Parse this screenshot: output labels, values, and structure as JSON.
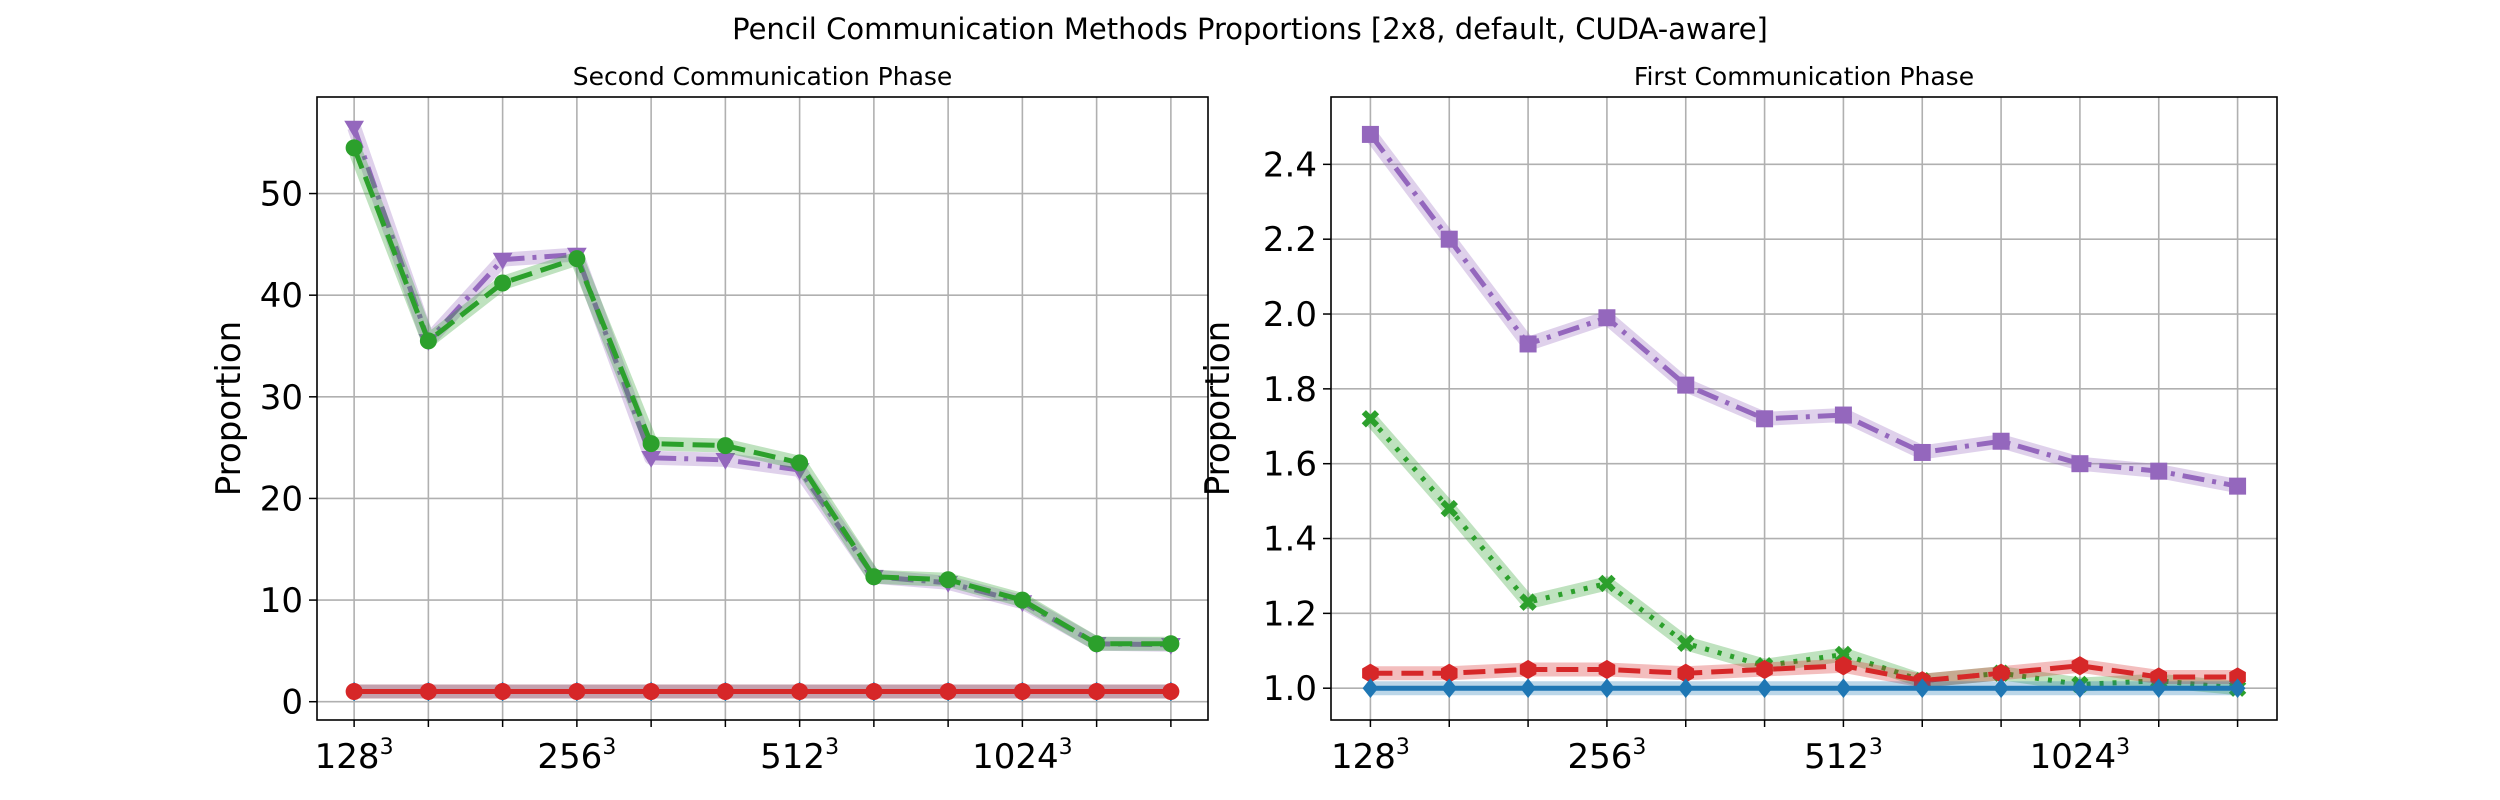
{
  "figure": {
    "title": "Pencil Communication Methods Proportions [2x8, default, CUDA-aware]"
  },
  "chart_data": [
    {
      "type": "line",
      "title": "Second Communication Phase",
      "xlabel": "",
      "ylabel": "Proportion",
      "x": [
        1,
        2,
        3,
        4,
        5,
        6,
        7,
        8,
        9,
        10,
        11,
        12
      ],
      "x_tick_labels": [
        {
          "x": 1,
          "base": "128",
          "exp": "3"
        },
        {
          "x": 4,
          "base": "256",
          "exp": "3"
        },
        {
          "x": 7,
          "base": "512",
          "exp": "3"
        },
        {
          "x": 10,
          "base": "1024",
          "exp": "3"
        }
      ],
      "xlim": [
        0.5,
        12.5
      ],
      "ylim": [
        -1.8,
        59.5
      ],
      "yticks": [
        0,
        10,
        20,
        30,
        40,
        50
      ],
      "ytick_labels": [
        "0",
        "10",
        "20",
        "30",
        "40",
        "50"
      ],
      "grid": true,
      "series": [
        {
          "color": "#9467bd",
          "linestyle": "dashdot",
          "marker": "triangle-down",
          "values": [
            56.5,
            35.5,
            43.5,
            44.0,
            24.0,
            23.8,
            22.8,
            12.3,
            11.7,
            9.8,
            5.7,
            5.6
          ]
        },
        {
          "color": "#2ca02c",
          "linestyle": "dashed",
          "marker": "circle",
          "values": [
            54.5,
            35.5,
            41.2,
            43.6,
            25.4,
            25.2,
            23.5,
            12.3,
            12.0,
            10.0,
            5.7,
            5.7
          ]
        },
        {
          "color": "#1f77b4",
          "linestyle": "dotted",
          "marker": "diamond",
          "values": [
            1.0,
            1.0,
            1.0,
            1.0,
            1.0,
            1.0,
            1.0,
            1.0,
            1.0,
            1.0,
            1.0,
            1.0
          ]
        },
        {
          "color": "#d62728",
          "linestyle": "solid",
          "marker": "circle",
          "values": [
            1.0,
            1.0,
            1.0,
            1.0,
            1.0,
            1.0,
            1.0,
            1.0,
            1.0,
            1.0,
            1.0,
            1.0
          ]
        }
      ]
    },
    {
      "type": "line",
      "title": "First Communication Phase",
      "xlabel": "",
      "ylabel": "Proportion",
      "x": [
        1,
        2,
        3,
        4,
        5,
        6,
        7,
        8,
        9,
        10,
        11,
        12
      ],
      "x_tick_labels": [
        {
          "x": 1,
          "base": "128",
          "exp": "3"
        },
        {
          "x": 4,
          "base": "256",
          "exp": "3"
        },
        {
          "x": 7,
          "base": "512",
          "exp": "3"
        },
        {
          "x": 10,
          "base": "1024",
          "exp": "3"
        }
      ],
      "xlim": [
        0.5,
        12.5
      ],
      "ylim": [
        0.915,
        2.58
      ],
      "yticks": [
        1.0,
        1.2,
        1.4,
        1.6,
        1.8,
        2.0,
        2.2,
        2.4
      ],
      "ytick_labels": [
        "1.0",
        "1.2",
        "1.4",
        "1.6",
        "1.8",
        "2.0",
        "2.2",
        "2.4"
      ],
      "grid": true,
      "series": [
        {
          "color": "#9467bd",
          "linestyle": "dashdot",
          "marker": "square",
          "values": [
            2.48,
            2.2,
            1.92,
            1.99,
            1.81,
            1.72,
            1.73,
            1.63,
            1.66,
            1.6,
            1.58,
            1.54
          ]
        },
        {
          "color": "#2ca02c",
          "linestyle": "dotted",
          "marker": "x",
          "values": [
            1.72,
            1.48,
            1.23,
            1.28,
            1.12,
            1.06,
            1.09,
            1.02,
            1.04,
            1.01,
            1.02,
            1.0
          ]
        },
        {
          "color": "#d62728",
          "linestyle": "dashed",
          "marker": "hexagon",
          "values": [
            1.04,
            1.04,
            1.05,
            1.05,
            1.04,
            1.05,
            1.06,
            1.02,
            1.04,
            1.06,
            1.03,
            1.03
          ]
        },
        {
          "color": "#1f77b4",
          "linestyle": "solid",
          "marker": "diamond",
          "values": [
            1.0,
            1.0,
            1.0,
            1.0,
            1.0,
            1.0,
            1.0,
            1.0,
            1.0,
            1.0,
            1.0,
            1.0
          ]
        }
      ]
    }
  ]
}
